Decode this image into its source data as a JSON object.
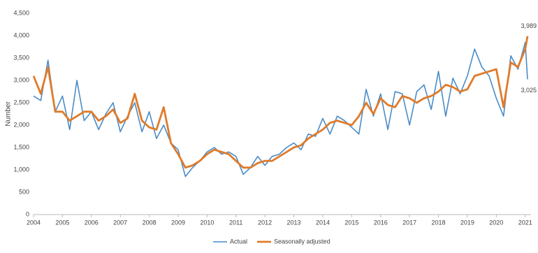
{
  "chart_data": {
    "type": "line",
    "y_label": "Number",
    "x": [
      2004,
      2004.25,
      2004.5,
      2004.75,
      2005,
      2005.25,
      2005.5,
      2005.75,
      2006,
      2006.25,
      2006.5,
      2006.75,
      2007,
      2007.25,
      2007.5,
      2007.75,
      2008,
      2008.25,
      2008.5,
      2008.75,
      2009,
      2009.25,
      2009.5,
      2009.75,
      2010,
      2010.25,
      2010.5,
      2010.75,
      2011,
      2011.25,
      2011.5,
      2011.75,
      2012,
      2012.25,
      2012.5,
      2012.75,
      2013,
      2013.25,
      2013.5,
      2013.75,
      2014,
      2014.25,
      2014.5,
      2014.75,
      2015,
      2015.25,
      2015.5,
      2015.75,
      2016,
      2016.25,
      2016.5,
      2016.75,
      2017,
      2017.25,
      2017.5,
      2017.75,
      2018,
      2018.25,
      2018.5,
      2018.75,
      2019,
      2019.25,
      2019.5,
      2019.75,
      2020,
      2020.25,
      2020.5,
      2020.75,
      2021,
      2021.08
    ],
    "series": [
      {
        "name": "Actual",
        "color": "#4a8cc7",
        "width": 1.6,
        "values": [
          2650,
          2550,
          3450,
          2300,
          2650,
          1900,
          3000,
          2100,
          2300,
          1900,
          2250,
          2500,
          1850,
          2200,
          2500,
          1850,
          2300,
          1700,
          2000,
          1600,
          1450,
          850,
          1050,
          1200,
          1400,
          1500,
          1350,
          1400,
          1300,
          900,
          1050,
          1300,
          1100,
          1300,
          1350,
          1500,
          1600,
          1450,
          1800,
          1750,
          2150,
          1800,
          2200,
          2100,
          1950,
          1800,
          2800,
          2200,
          2700,
          1900,
          2750,
          2700,
          2000,
          2750,
          2900,
          2350,
          3200,
          2200,
          3050,
          2700,
          3100,
          3700,
          3300,
          3100,
          2600,
          2200,
          3550,
          3250,
          3850,
          3025
        ],
        "value_labels": [
          null,
          null,
          null,
          null,
          null,
          null,
          null,
          null,
          null,
          null,
          null,
          null,
          null,
          null,
          null,
          null,
          null,
          null,
          null,
          null,
          null,
          null,
          null,
          null,
          null,
          null,
          null,
          null,
          null,
          null,
          null,
          null,
          null,
          null,
          null,
          null,
          null,
          null,
          null,
          null,
          null,
          null,
          null,
          null,
          null,
          null,
          null,
          null,
          null,
          null,
          null,
          null,
          null,
          null,
          null,
          null,
          null,
          null,
          null,
          null,
          null,
          null,
          null,
          null,
          null,
          null,
          null,
          null,
          null,
          "3,025"
        ]
      },
      {
        "name": "Seasonally adjusted",
        "color": "#e07b2a",
        "width": 2.8,
        "values": [
          3100,
          2700,
          3300,
          2300,
          2300,
          2100,
          2200,
          2300,
          2300,
          2100,
          2200,
          2350,
          2050,
          2150,
          2700,
          2100,
          1950,
          1900,
          2400,
          1600,
          1350,
          1050,
          1100,
          1200,
          1350,
          1450,
          1400,
          1350,
          1200,
          1050,
          1050,
          1150,
          1200,
          1200,
          1300,
          1400,
          1500,
          1550,
          1700,
          1800,
          1900,
          2050,
          2100,
          2050,
          2000,
          2200,
          2500,
          2250,
          2600,
          2450,
          2400,
          2650,
          2600,
          2500,
          2600,
          2650,
          2750,
          2900,
          2850,
          2750,
          2800,
          3100,
          3150,
          3200,
          3250,
          2400,
          3400,
          3300,
          3700,
          3989
        ],
        "value_labels": [
          null,
          null,
          null,
          null,
          null,
          null,
          null,
          null,
          null,
          null,
          null,
          null,
          null,
          null,
          null,
          null,
          null,
          null,
          null,
          null,
          null,
          null,
          null,
          null,
          null,
          null,
          null,
          null,
          null,
          null,
          null,
          null,
          null,
          null,
          null,
          null,
          null,
          null,
          null,
          null,
          null,
          null,
          null,
          null,
          null,
          null,
          null,
          null,
          null,
          null,
          null,
          null,
          null,
          null,
          null,
          null,
          null,
          null,
          null,
          null,
          null,
          null,
          null,
          null,
          null,
          null,
          null,
          null,
          null,
          "3,989"
        ]
      }
    ],
    "xlim": [
      2004,
      2021.2
    ],
    "xticks": [
      2004,
      2005,
      2006,
      2007,
      2008,
      2009,
      2010,
      2011,
      2012,
      2013,
      2014,
      2015,
      2016,
      2017,
      2018,
      2019,
      2020,
      2021
    ],
    "ylim": [
      0,
      4500
    ],
    "yticks": [
      0,
      500,
      {
        "value": 1000,
        "label": "1,000"
      },
      {
        "value": 1500,
        "label": "1,500"
      },
      {
        "value": 2000,
        "label": "2,000"
      },
      {
        "value": 2500,
        "label": "2,500"
      },
      {
        "value": 3000,
        "label": "3,000"
      },
      {
        "value": 3500,
        "label": "3,500"
      },
      {
        "value": 4000,
        "label": "4,000"
      },
      {
        "value": 4500,
        "label": "4,500"
      }
    ],
    "grid": false
  }
}
